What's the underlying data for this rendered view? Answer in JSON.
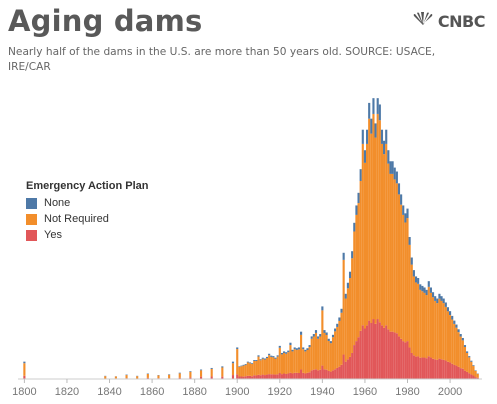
{
  "header": {
    "title": "Aging dams",
    "logo_text": "CNBC",
    "subtitle": "Nearly half of the dams in the U.S. are more than 50 years old. SOURCE: USACE, IRE/CAR"
  },
  "legend": {
    "title": "Emergency Action Plan",
    "items": [
      {
        "label": "None",
        "color": "#4e79a7"
      },
      {
        "label": "Not Required",
        "color": "#f28e2b"
      },
      {
        "label": "Yes",
        "color": "#e15759"
      }
    ]
  },
  "chart_data": {
    "type": "bar",
    "stacked": true,
    "title": "Aging dams",
    "xlabel": "",
    "ylabel": "",
    "x_ticks": [
      "1800",
      "1820",
      "1840",
      "1860",
      "1880",
      "1900",
      "1920",
      "1940",
      "1960",
      "1980",
      "2000"
    ],
    "xlim": [
      1797,
      2015
    ],
    "ylim": [
      0,
      1800
    ],
    "grid": false,
    "legend_position": "left",
    "points": [
      [
        1800,
        80,
        10,
        20
      ],
      [
        1838,
        15,
        2,
        3
      ],
      [
        1843,
        12,
        1,
        4
      ],
      [
        1848,
        20,
        3,
        5
      ],
      [
        1853,
        15,
        2,
        3
      ],
      [
        1858,
        25,
        3,
        7
      ],
      [
        1863,
        18,
        2,
        5
      ],
      [
        1868,
        22,
        3,
        5
      ],
      [
        1873,
        28,
        4,
        8
      ],
      [
        1878,
        35,
        4,
        11
      ],
      [
        1883,
        40,
        5,
        15
      ],
      [
        1888,
        48,
        6,
        16
      ],
      [
        1893,
        58,
        7,
        15
      ],
      [
        1898,
        75,
        10,
        25
      ],
      [
        1900,
        160,
        10,
        30
      ],
      [
        1901,
        60,
        4,
        16
      ],
      [
        1902,
        65,
        4,
        16
      ],
      [
        1903,
        70,
        5,
        15
      ],
      [
        1904,
        72,
        5,
        18
      ],
      [
        1905,
        85,
        5,
        20
      ],
      [
        1906,
        80,
        5,
        20
      ],
      [
        1907,
        78,
        5,
        17
      ],
      [
        1908,
        90,
        6,
        24
      ],
      [
        1909,
        92,
        6,
        22
      ],
      [
        1910,
        115,
        8,
        27
      ],
      [
        1911,
        95,
        6,
        24
      ],
      [
        1912,
        100,
        7,
        28
      ],
      [
        1913,
        98,
        7,
        25
      ],
      [
        1914,
        105,
        7,
        28
      ],
      [
        1915,
        120,
        9,
        31
      ],
      [
        1916,
        110,
        8,
        30
      ],
      [
        1917,
        108,
        8,
        29
      ],
      [
        1918,
        100,
        7,
        28
      ],
      [
        1919,
        112,
        8,
        30
      ],
      [
        1920,
        160,
        12,
        38
      ],
      [
        1921,
        125,
        9,
        31
      ],
      [
        1922,
        130,
        10,
        35
      ],
      [
        1923,
        128,
        10,
        32
      ],
      [
        1924,
        135,
        10,
        35
      ],
      [
        1925,
        175,
        15,
        40
      ],
      [
        1926,
        140,
        10,
        35
      ],
      [
        1927,
        150,
        11,
        39
      ],
      [
        1928,
        145,
        11,
        39
      ],
      [
        1929,
        150,
        12,
        38
      ],
      [
        1930,
        220,
        20,
        60
      ],
      [
        1931,
        150,
        11,
        39
      ],
      [
        1932,
        140,
        10,
        35
      ],
      [
        1933,
        145,
        11,
        39
      ],
      [
        1934,
        160,
        12,
        43
      ],
      [
        1935,
        200,
        15,
        55
      ],
      [
        1936,
        210,
        16,
        59
      ],
      [
        1937,
        230,
        18,
        62
      ],
      [
        1938,
        200,
        15,
        55
      ],
      [
        1939,
        210,
        16,
        59
      ],
      [
        1940,
        350,
        25,
        85
      ],
      [
        1941,
        230,
        18,
        62
      ],
      [
        1942,
        220,
        16,
        59
      ],
      [
        1943,
        190,
        14,
        51
      ],
      [
        1944,
        180,
        13,
        47
      ],
      [
        1945,
        210,
        15,
        55
      ],
      [
        1946,
        240,
        18,
        62
      ],
      [
        1947,
        260,
        20,
        70
      ],
      [
        1948,
        290,
        22,
        78
      ],
      [
        1949,
        330,
        25,
        90
      ],
      [
        1950,
        600,
        45,
        155
      ],
      [
        1951,
        400,
        30,
        110
      ],
      [
        1952,
        450,
        35,
        125
      ],
      [
        1953,
        500,
        40,
        140
      ],
      [
        1954,
        600,
        45,
        165
      ],
      [
        1955,
        720,
        55,
        215
      ],
      [
        1956,
        800,
        60,
        240
      ],
      [
        1957,
        850,
        65,
        265
      ],
      [
        1958,
        950,
        75,
        305
      ],
      [
        1959,
        1150,
        90,
        340
      ],
      [
        1960,
        1050,
        80,
        320
      ],
      [
        1961,
        1150,
        90,
        340
      ],
      [
        1962,
        1280,
        100,
        370
      ],
      [
        1963,
        1200,
        95,
        355
      ],
      [
        1964,
        1300,
        100,
        380
      ],
      [
        1965,
        1180,
        90,
        350
      ],
      [
        1966,
        1300,
        100,
        380
      ],
      [
        1967,
        1280,
        100,
        360
      ],
      [
        1968,
        1150,
        90,
        340
      ],
      [
        1969,
        1100,
        85,
        325
      ],
      [
        1970,
        1150,
        90,
        340
      ],
      [
        1971,
        1050,
        85,
        315
      ],
      [
        1972,
        1000,
        80,
        300
      ],
      [
        1973,
        1000,
        80,
        300
      ],
      [
        1974,
        970,
        75,
        295
      ],
      [
        1975,
        950,
        75,
        290
      ],
      [
        1976,
        900,
        70,
        270
      ],
      [
        1977,
        850,
        65,
        255
      ],
      [
        1978,
        800,
        60,
        240
      ],
      [
        1979,
        760,
        58,
        232
      ],
      [
        1980,
        780,
        60,
        240
      ],
      [
        1981,
        650,
        50,
        200
      ],
      [
        1982,
        560,
        45,
        165
      ],
      [
        1983,
        500,
        40,
        150
      ],
      [
        1984,
        470,
        38,
        142
      ],
      [
        1985,
        460,
        37,
        143
      ],
      [
        1986,
        430,
        35,
        135
      ],
      [
        1987,
        420,
        34,
        136
      ],
      [
        1988,
        410,
        34,
        136
      ],
      [
        1989,
        400,
        33,
        132
      ],
      [
        1990,
        440,
        36,
        144
      ],
      [
        1991,
        410,
        34,
        136
      ],
      [
        1992,
        390,
        32,
        128
      ],
      [
        1993,
        370,
        30,
        125
      ],
      [
        1994,
        360,
        29,
        121
      ],
      [
        1995,
        380,
        31,
        129
      ],
      [
        1996,
        370,
        30,
        125
      ],
      [
        1997,
        360,
        29,
        121
      ],
      [
        1998,
        340,
        28,
        117
      ],
      [
        1999,
        320,
        26,
        109
      ],
      [
        2000,
        300,
        25,
        105
      ],
      [
        2001,
        280,
        23,
        97
      ],
      [
        2002,
        260,
        21,
        89
      ],
      [
        2003,
        240,
        20,
        85
      ],
      [
        2004,
        220,
        18,
        77
      ],
      [
        2005,
        200,
        16,
        69
      ],
      [
        2006,
        180,
        15,
        65
      ],
      [
        2007,
        150,
        12,
        53
      ],
      [
        2008,
        120,
        10,
        45
      ],
      [
        2009,
        100,
        8,
        37
      ],
      [
        2010,
        80,
        7,
        29
      ],
      [
        2011,
        60,
        5,
        22
      ],
      [
        2012,
        40,
        3,
        12
      ],
      [
        2013,
        25,
        2,
        8
      ]
    ],
    "point_fields": [
      "year",
      "not_required",
      "none",
      "yes"
    ]
  }
}
